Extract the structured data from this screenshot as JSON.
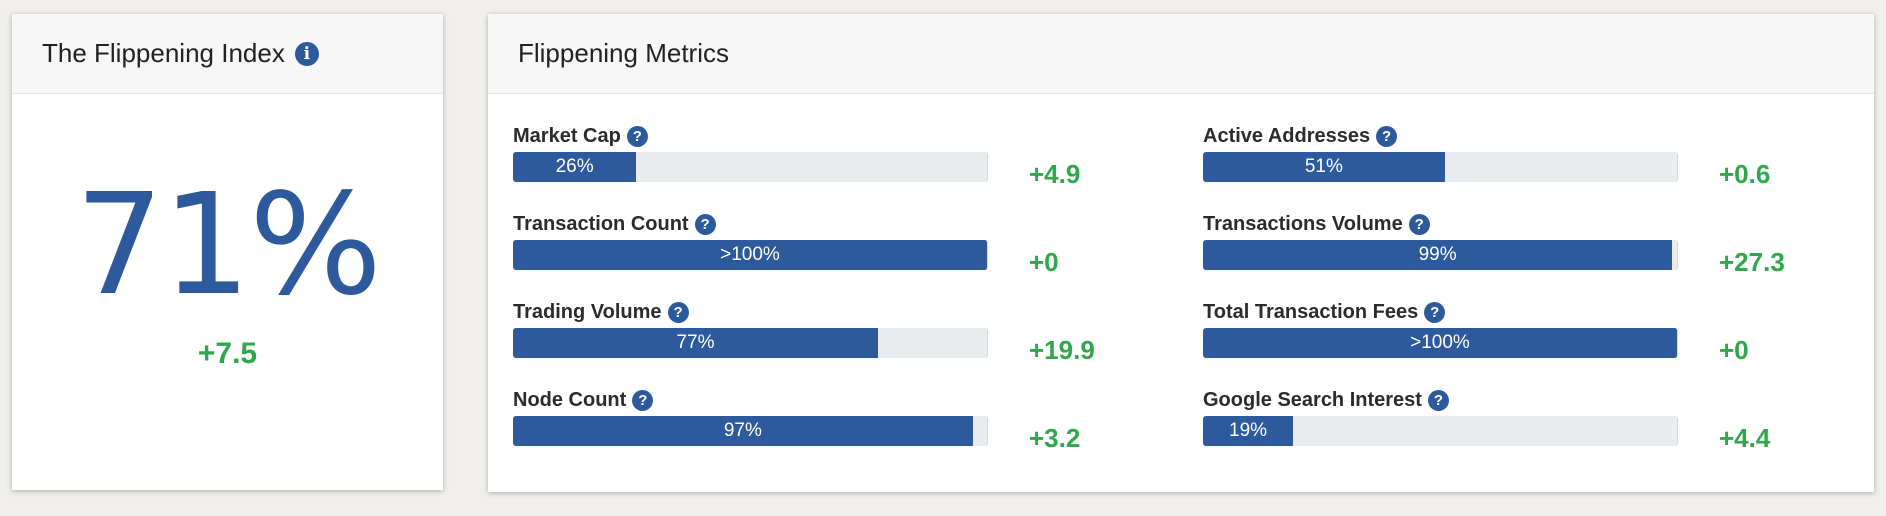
{
  "index_card": {
    "title": "The Flippening Index",
    "info_icon": "info-icon",
    "value": "71%",
    "change": "+7.5"
  },
  "metrics_card": {
    "title": "Flippening Metrics",
    "help_icon": "question-icon",
    "colors": {
      "bar_fill": "#2d5a9c",
      "bar_track": "#e9ecef",
      "change_positive": "#2ea84a"
    },
    "metrics": [
      {
        "label": "Market Cap",
        "bar_text": "26%",
        "fill_pct": 26,
        "change": "+4.9"
      },
      {
        "label": "Transaction Count",
        "bar_text": ">100%",
        "fill_pct": 100,
        "change": "+0"
      },
      {
        "label": "Trading Volume",
        "bar_text": "77%",
        "fill_pct": 77,
        "change": "+19.9"
      },
      {
        "label": "Node Count",
        "bar_text": "97%",
        "fill_pct": 97,
        "change": "+3.2"
      },
      {
        "label": "Active Addresses",
        "bar_text": "51%",
        "fill_pct": 51,
        "change": "+0.6"
      },
      {
        "label": "Transactions Volume",
        "bar_text": "99%",
        "fill_pct": 99,
        "change": "+27.3"
      },
      {
        "label": "Total Transaction Fees",
        "bar_text": ">100%",
        "fill_pct": 100,
        "change": "+0"
      },
      {
        "label": "Google Search Interest",
        "bar_text": "19%",
        "fill_pct": 19,
        "change": "+4.4"
      }
    ]
  }
}
